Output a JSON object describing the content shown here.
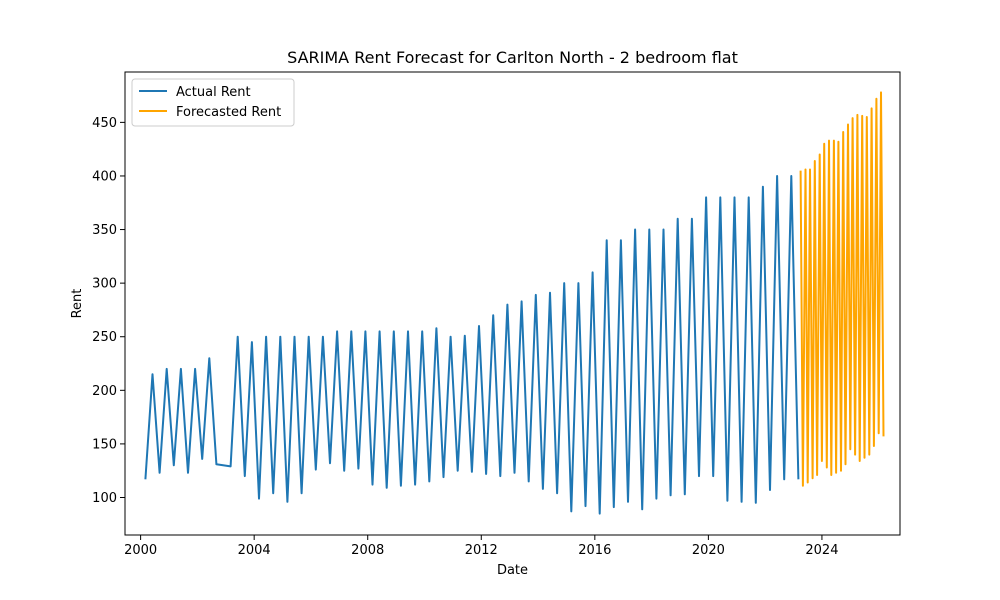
{
  "chart_data": {
    "type": "line",
    "title": "SARIMA Rent Forecast for Carlton North - 2 bedroom flat",
    "xlabel": "Date",
    "ylabel": "Rent",
    "xlim": [
      1999.45,
      2026.75
    ],
    "ylim": [
      65,
      497
    ],
    "x_ticks": [
      2000,
      2004,
      2008,
      2012,
      2016,
      2020,
      2024
    ],
    "x_tick_labels": [
      "2000",
      "2004",
      "2008",
      "2012",
      "2016",
      "2020",
      "2024"
    ],
    "y_ticks": [
      100,
      150,
      200,
      250,
      300,
      350,
      400,
      450
    ],
    "y_tick_labels": [
      "100",
      "150",
      "200",
      "250",
      "300",
      "350",
      "400",
      "450"
    ],
    "legend_position": "top-left",
    "grid": false,
    "series": [
      {
        "name": "Actual Rent",
        "color": "#1f77b4",
        "x": [
          2000.17,
          2000.42,
          2000.67,
          2000.92,
          2001.17,
          2001.42,
          2001.67,
          2001.92,
          2002.17,
          2002.42,
          2002.67,
          2003.17,
          2003.42,
          2003.67,
          2003.92,
          2004.17,
          2004.42,
          2004.67,
          2004.92,
          2005.17,
          2005.42,
          2005.67,
          2005.92,
          2006.17,
          2006.42,
          2006.67,
          2006.92,
          2007.17,
          2007.42,
          2007.67,
          2007.92,
          2008.17,
          2008.42,
          2008.67,
          2008.92,
          2009.17,
          2009.42,
          2009.67,
          2009.92,
          2010.17,
          2010.42,
          2010.67,
          2010.92,
          2011.17,
          2011.42,
          2011.67,
          2011.92,
          2012.17,
          2012.42,
          2012.67,
          2012.92,
          2013.17,
          2013.42,
          2013.67,
          2013.92,
          2014.17,
          2014.42,
          2014.67,
          2014.92,
          2015.17,
          2015.42,
          2015.67,
          2015.92,
          2016.17,
          2016.42,
          2016.67,
          2016.92,
          2017.17,
          2017.42,
          2017.67,
          2017.92,
          2018.17,
          2018.42,
          2018.67,
          2018.92,
          2019.17,
          2019.42,
          2019.67,
          2019.92,
          2020.17,
          2020.42,
          2020.67,
          2020.92,
          2021.17,
          2021.42,
          2021.67,
          2021.92,
          2022.17,
          2022.42,
          2022.67,
          2022.92,
          2023.17
        ],
        "y": [
          117,
          215,
          123,
          220,
          130,
          220,
          123,
          220,
          136,
          230,
          131,
          129,
          250,
          120,
          245,
          99,
          250,
          104,
          250,
          96,
          250,
          104,
          250,
          126,
          250,
          132,
          255,
          125,
          255,
          127,
          255,
          112,
          255,
          109,
          255,
          111,
          255,
          112,
          255,
          115,
          258,
          119,
          250,
          125,
          251,
          124,
          260,
          122,
          270,
          120,
          280,
          123,
          283,
          115,
          289,
          108,
          291,
          104,
          300,
          87,
          300,
          92,
          310,
          85,
          340,
          91,
          340,
          96,
          350,
          89,
          350,
          99,
          350,
          102,
          360,
          103,
          360,
          120,
          380,
          120,
          380,
          97,
          380,
          96,
          380,
          95,
          390,
          107,
          400,
          117,
          400,
          117
        ]
      },
      {
        "name": "Forecasted Rent",
        "color": "#ffa500",
        "x": [
          2023.25,
          2023.33,
          2023.42,
          2023.5,
          2023.58,
          2023.67,
          2023.75,
          2023.83,
          2023.92,
          2024.0,
          2024.08,
          2024.17,
          2024.25,
          2024.33,
          2024.42,
          2024.5,
          2024.58,
          2024.67,
          2024.75,
          2024.83,
          2024.92,
          2025.0,
          2025.08,
          2025.17,
          2025.25,
          2025.33,
          2025.42,
          2025.5,
          2025.58,
          2025.67,
          2025.75,
          2025.83,
          2025.92,
          2026.0,
          2026.08,
          2026.17
        ],
        "y": [
          405,
          111,
          406,
          114,
          406,
          118,
          414,
          121,
          420,
          134,
          430,
          128,
          433,
          121,
          433,
          123,
          432,
          125,
          441,
          131,
          448,
          145,
          454,
          140,
          457,
          134,
          456,
          137,
          455,
          140,
          463,
          148,
          472,
          160,
          478,
          157
        ]
      }
    ]
  }
}
